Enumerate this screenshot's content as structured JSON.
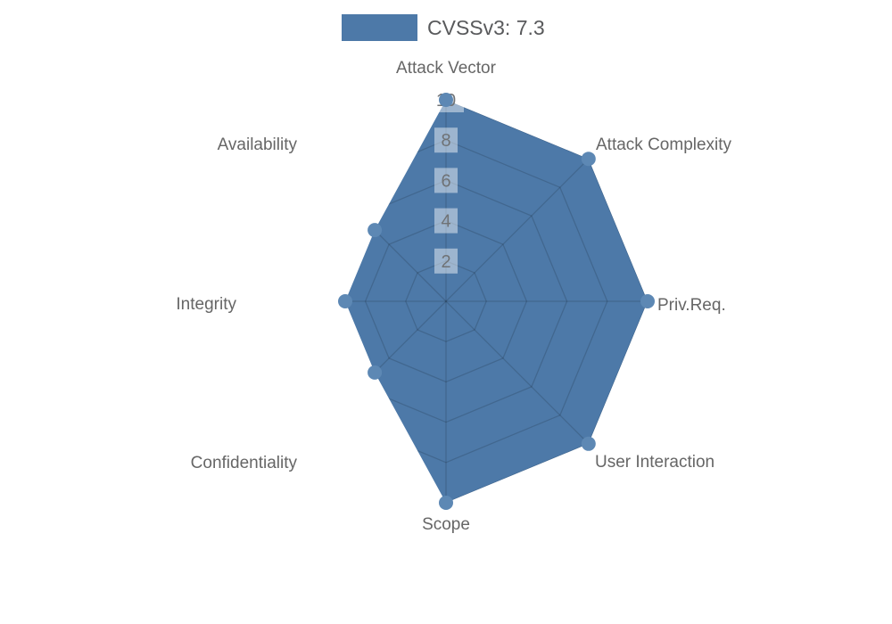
{
  "legend": {
    "label": "CVSSv3: 7.3",
    "swatch_color": "#4d79a8"
  },
  "chart_data": {
    "type": "radar",
    "title": "CVSSv3: 7.3",
    "categories": [
      "Attack Vector",
      "Attack Complexity",
      "Priv.Req.",
      "User Interaction",
      "Scope",
      "Confidentiality",
      "Integrity",
      "Availability"
    ],
    "series": [
      {
        "name": "CVSSv3: 7.3",
        "values": [
          10,
          10,
          10,
          10,
          10,
          5,
          5,
          5
        ]
      }
    ],
    "ticks": [
      2,
      4,
      6,
      8,
      10
    ],
    "tick_labels": [
      "2",
      "4",
      "6",
      "8",
      "10"
    ],
    "rmin": 0,
    "rmax": 10,
    "grid": "polygon-web",
    "grid_visible_outside_series": false,
    "legend_position": "top",
    "colors": {
      "fill": "#4d79a8",
      "point": "#5d88b4",
      "grid_line": "rgba(0,0,0,0.15)",
      "axis_label": "#666666",
      "tick_text": "#6f7275",
      "tick_box_bg": "rgba(255,255,255,0.45)",
      "legend_text": "#595a5c",
      "background": "#ffffff"
    }
  }
}
